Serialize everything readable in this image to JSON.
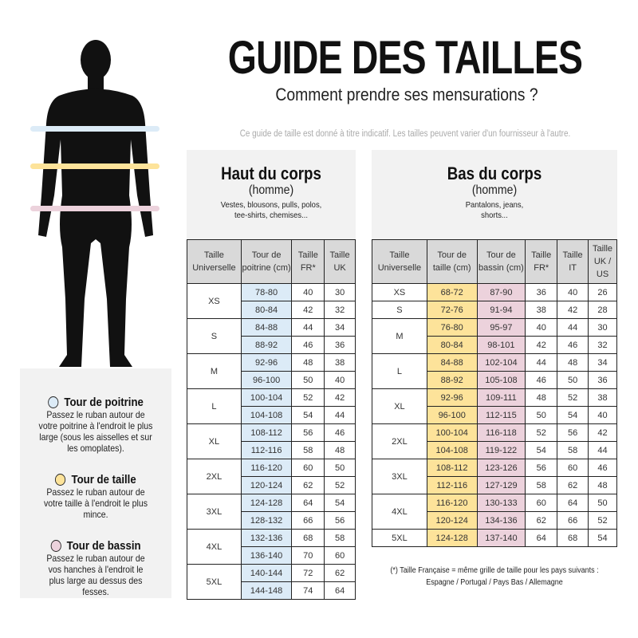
{
  "title": "GUIDE DES TAILLES",
  "subtitle": "Comment prendre ses mensurations ?",
  "note": "Ce guide de taille est donné à titre indicatif. Les tailles peuvent varier d'un fournisseur à l'autre.",
  "colors": {
    "chest": "#dcebf7",
    "waist": "#fde39a",
    "hips": "#ecd2dc",
    "panel": "#f2f2f2",
    "header": "#d9d9d9"
  },
  "legend": [
    {
      "title": "Tour de poitrine",
      "text": "Passez le ruban autour de votre poitrine à l'endroit le plus large (sous les aisselles et sur les omoplates).",
      "color": "#dcebf7"
    },
    {
      "title": "Tour de taille",
      "text": "Passez le ruban autour de votre taille à l'endroit le plus mince.",
      "color": "#fde39a"
    },
    {
      "title": "Tour de bassin",
      "text": "Passez le ruban autour de vos hanches à l'endroit le plus large au dessus des fesses.",
      "color": "#ecd2dc"
    }
  ],
  "top": {
    "heading": "Haut du corps",
    "sub": "(homme)",
    "desc": "Vestes, blousons, pulls, polos, tee-shirts, chemises...",
    "columns": [
      "Taille Universelle",
      "Tour de poitrine (cm)",
      "Taille FR*",
      "Taille UK"
    ],
    "groups": [
      {
        "size": "XS",
        "rows": [
          [
            "78-80",
            "40",
            "30"
          ],
          [
            "80-84",
            "42",
            "32"
          ]
        ]
      },
      {
        "size": "S",
        "rows": [
          [
            "84-88",
            "44",
            "34"
          ],
          [
            "88-92",
            "46",
            "36"
          ]
        ]
      },
      {
        "size": "M",
        "rows": [
          [
            "92-96",
            "48",
            "38"
          ],
          [
            "96-100",
            "50",
            "40"
          ]
        ]
      },
      {
        "size": "L",
        "rows": [
          [
            "100-104",
            "52",
            "42"
          ],
          [
            "104-108",
            "54",
            "44"
          ]
        ]
      },
      {
        "size": "XL",
        "rows": [
          [
            "108-112",
            "56",
            "46"
          ],
          [
            "112-116",
            "58",
            "48"
          ]
        ]
      },
      {
        "size": "2XL",
        "rows": [
          [
            "116-120",
            "60",
            "50"
          ],
          [
            "120-124",
            "62",
            "52"
          ]
        ]
      },
      {
        "size": "3XL",
        "rows": [
          [
            "124-128",
            "64",
            "54"
          ],
          [
            "128-132",
            "66",
            "56"
          ]
        ]
      },
      {
        "size": "4XL",
        "rows": [
          [
            "132-136",
            "68",
            "58"
          ],
          [
            "136-140",
            "70",
            "60"
          ]
        ]
      },
      {
        "size": "5XL",
        "rows": [
          [
            "140-144",
            "72",
            "62"
          ],
          [
            "144-148",
            "74",
            "64"
          ]
        ]
      }
    ]
  },
  "bottom": {
    "heading": "Bas du corps",
    "sub": "(homme)",
    "desc": "Pantalons, jeans, shorts...",
    "columns": [
      "Taille Universelle",
      "Tour de taille (cm)",
      "Tour de bassin (cm)",
      "Taille FR*",
      "Taille IT",
      "Taille UK / US"
    ],
    "groups": [
      {
        "size": "XS",
        "rows": [
          [
            "68-72",
            "87-90",
            "36",
            "40",
            "26"
          ]
        ]
      },
      {
        "size": "S",
        "rows": [
          [
            "72-76",
            "91-94",
            "38",
            "42",
            "28"
          ]
        ]
      },
      {
        "size": "M",
        "rows": [
          [
            "76-80",
            "95-97",
            "40",
            "44",
            "30"
          ],
          [
            "80-84",
            "98-101",
            "42",
            "46",
            "32"
          ]
        ]
      },
      {
        "size": "L",
        "rows": [
          [
            "84-88",
            "102-104",
            "44",
            "48",
            "34"
          ],
          [
            "88-92",
            "105-108",
            "46",
            "50",
            "36"
          ]
        ]
      },
      {
        "size": "XL",
        "rows": [
          [
            "92-96",
            "109-111",
            "48",
            "52",
            "38"
          ],
          [
            "96-100",
            "112-115",
            "50",
            "54",
            "40"
          ]
        ]
      },
      {
        "size": "2XL",
        "rows": [
          [
            "100-104",
            "116-118",
            "52",
            "56",
            "42"
          ],
          [
            "104-108",
            "119-122",
            "54",
            "58",
            "44"
          ]
        ]
      },
      {
        "size": "3XL",
        "rows": [
          [
            "108-112",
            "123-126",
            "56",
            "60",
            "46"
          ],
          [
            "112-116",
            "127-129",
            "58",
            "62",
            "48"
          ]
        ]
      },
      {
        "size": "4XL",
        "rows": [
          [
            "116-120",
            "130-133",
            "60",
            "64",
            "50"
          ],
          [
            "120-124",
            "134-136",
            "62",
            "66",
            "52"
          ]
        ]
      },
      {
        "size": "5XL",
        "rows": [
          [
            "124-128",
            "137-140",
            "64",
            "68",
            "54"
          ]
        ]
      }
    ]
  },
  "footnote": [
    "(*) Taille Française = même grille de taille pour les pays suivants :",
    "Espagne / Portugal / Pays Bas / Allemagne"
  ]
}
